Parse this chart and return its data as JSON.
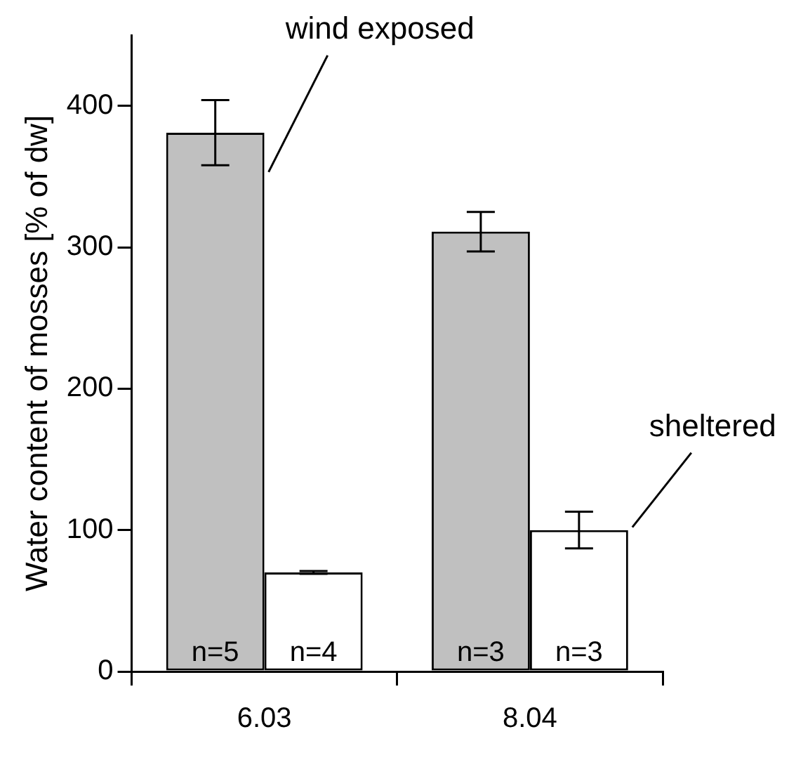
{
  "chart_data": {
    "type": "bar",
    "ylabel": "Water content of mosses [% of dw]",
    "categories": [
      "6.03",
      "8.04"
    ],
    "series": [
      {
        "name": "wind exposed",
        "color": "#c0c0c0",
        "values": [
          381,
          311
        ],
        "errors": [
          23,
          14
        ]
      },
      {
        "name": "sheltered",
        "color": "#ffffff",
        "values": [
          70,
          100
        ],
        "errors": [
          1,
          13
        ]
      }
    ],
    "ylim": [
      0,
      450
    ],
    "yticks": [
      0,
      100,
      200,
      300,
      400
    ],
    "grid": false,
    "legend": false,
    "annotations": [
      "n=5",
      "n=4",
      "n=3",
      "n=3"
    ]
  }
}
